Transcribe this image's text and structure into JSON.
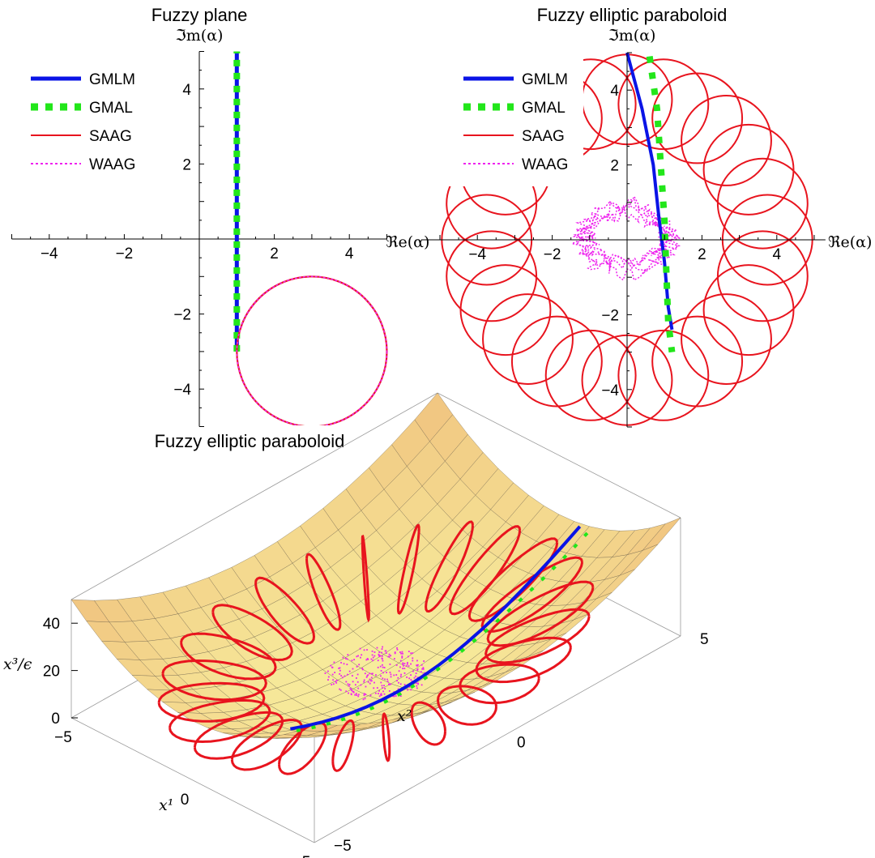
{
  "colors": {
    "GMLM": "#0a14e6",
    "GMAL": "#22e61a",
    "SAAG": "#e8141e",
    "WAAG": "#ee22ee",
    "surface_top": "#f7ec9c",
    "surface_bottom": "#f0bd84"
  },
  "chart_data": [
    {
      "type": "line",
      "title": "Fuzzy plane",
      "xlabel": "",
      "ylabel": "ℑm(α)",
      "xlim": [
        -5,
        5
      ],
      "ylim": [
        -5,
        5
      ],
      "xticks": [
        -4,
        -2,
        2,
        4
      ],
      "yticks": [
        -4,
        -2,
        2,
        4
      ],
      "grid": false,
      "legend": "top-left",
      "series": [
        {
          "name": "GMLM",
          "style": "solid-thick",
          "x": [
            1,
            1
          ],
          "y": [
            -3,
            5
          ]
        },
        {
          "name": "GMAL",
          "style": "dotted-squares",
          "x": [
            1,
            1
          ],
          "y": [
            -3,
            5
          ]
        },
        {
          "name": "SAAG",
          "style": "solid-thin",
          "circle": {
            "center": [
              3,
              -3
            ],
            "radius": 2
          }
        },
        {
          "name": "WAAG",
          "style": "dotted-thin",
          "circle": {
            "center": [
              3,
              -3
            ],
            "radius": 2
          }
        }
      ]
    },
    {
      "type": "line",
      "title": "Fuzzy elliptic paraboloid",
      "xlabel": "ℜe(α)",
      "ylabel": "ℑm(α)",
      "xlim": [
        -5,
        5
      ],
      "ylim": [
        -5,
        5
      ],
      "xticks": [
        -4,
        -2,
        2,
        4
      ],
      "yticks": [
        -4,
        -2,
        2,
        4
      ],
      "grid": false,
      "legend": "top-left",
      "series": [
        {
          "name": "GMLM",
          "style": "solid-thick",
          "x": [
            0.0,
            0.4,
            0.7,
            0.85,
            1.0,
            1.1,
            1.2
          ],
          "y": [
            5,
            3.5,
            2,
            0.6,
            -0.6,
            -1.8,
            -2.4
          ]
        },
        {
          "name": "GMAL",
          "style": "dotted-squares",
          "x": [
            0.6,
            0.8,
            0.9,
            1.0,
            1.05,
            1.1,
            1.2
          ],
          "y": [
            4.9,
            3.5,
            2,
            0.5,
            -0.9,
            -2.2,
            -3
          ]
        },
        {
          "name": "SAAG",
          "style": "solid-thin",
          "circles": {
            "count": 24,
            "ring_radius": 3.75,
            "circle_radius": 1.2
          }
        },
        {
          "name": "WAAG",
          "style": "dotted-thin",
          "cloud": {
            "center": [
              0,
              0
            ],
            "rx": 1.5,
            "ry": 1.0
          }
        }
      ]
    },
    {
      "type": "surface3d",
      "title": "Fuzzy elliptic paraboloid",
      "xlabel": "x¹",
      "ylabel": "x²",
      "zlabel": "x³/ϵ",
      "xticks": [
        -5,
        0,
        5
      ],
      "yticks": [
        -5,
        0,
        5
      ],
      "zticks": [
        0,
        20,
        40
      ],
      "surface": "elliptic paraboloid",
      "series": [
        {
          "name": "GMLM"
        },
        {
          "name": "GMAL"
        },
        {
          "name": "SAAG",
          "circles": 24
        },
        {
          "name": "WAAG"
        }
      ]
    }
  ]
}
